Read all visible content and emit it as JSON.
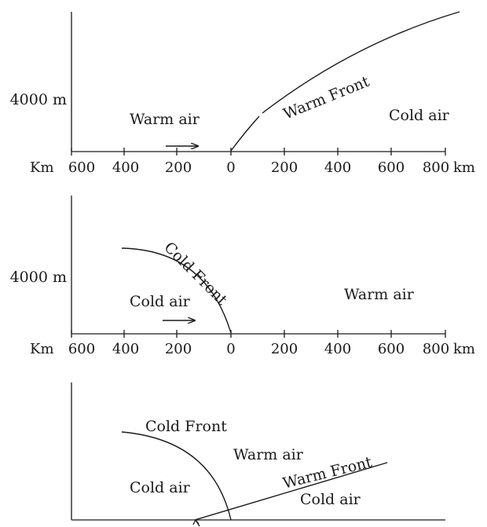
{
  "panels": [
    {
      "y_label": "4000 m",
      "x_left_unit": "Km",
      "x_right_unit": "km",
      "x_ticks": [
        "600",
        "400",
        "200",
        "0",
        "200",
        "400",
        "600",
        "800"
      ],
      "labels": {
        "warm_air": "Warm air",
        "cold_air": "Cold air",
        "front": "Warm Front"
      }
    },
    {
      "y_label": "4000 m",
      "x_left_unit": "Km",
      "x_right_unit": "km",
      "x_ticks": [
        "600",
        "400",
        "200",
        "0",
        "200",
        "400",
        "600",
        "800"
      ],
      "labels": {
        "cold_air": "Cold air",
        "warm_air": "Warm air",
        "front": "Cold Front"
      }
    },
    {
      "labels": {
        "cold_front": "Cold Front",
        "warm_air": "Warm air",
        "cold_air_left": "Cold air",
        "warm_front": "Warm Front",
        "cold_air_right": "Cold air"
      }
    }
  ]
}
